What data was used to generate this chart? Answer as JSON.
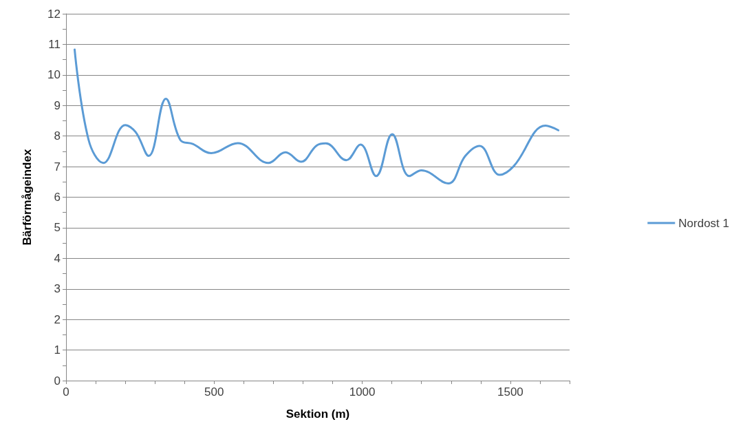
{
  "chart_data": {
    "type": "line",
    "xlabel": "Sektion (m)",
    "ylabel": "Bärförmågeindex",
    "series": [
      {
        "name": "Nordost 1",
        "color": "#5b9bd5",
        "x": [
          29,
          76,
          126,
          200,
          235,
          279,
          337,
          386,
          428,
          490,
          580,
          683,
          741,
          793,
          846,
          877,
          946,
          994,
          1047,
          1101,
          1159,
          1200,
          1290,
          1348,
          1396,
          1464,
          1511,
          1619,
          1662
        ],
        "values": [
          10.83,
          7.88,
          7.12,
          8.36,
          8.13,
          7.35,
          9.22,
          7.87,
          7.74,
          7.44,
          7.77,
          7.12,
          7.47,
          7.16,
          7.69,
          7.76,
          7.21,
          7.72,
          6.69,
          8.06,
          6.69,
          6.88,
          6.45,
          7.35,
          7.68,
          6.73,
          7.01,
          8.34,
          8.19
        ]
      }
    ],
    "xlim": [
      0,
      1700
    ],
    "xticks": [
      0,
      {
        "value": 100,
        "label": null
      },
      {
        "value": 200,
        "label": null
      },
      {
        "value": 300,
        "label": null
      },
      {
        "value": 400,
        "label": null
      },
      500,
      {
        "value": 600,
        "label": null
      },
      {
        "value": 700,
        "label": null
      },
      {
        "value": 800,
        "label": null
      },
      {
        "value": 900,
        "label": null
      },
      1000,
      {
        "value": 1100,
        "label": null
      },
      {
        "value": 1200,
        "label": null
      },
      {
        "value": 1300,
        "label": null
      },
      {
        "value": 1400,
        "label": null
      },
      1500,
      {
        "value": 1600,
        "label": null
      },
      {
        "value": 1700,
        "label": null
      }
    ],
    "ylim": [
      0,
      12
    ],
    "yticks": [
      0,
      {
        "value": 0.5,
        "label": null
      },
      1,
      {
        "value": 1.5,
        "label": null
      },
      2,
      {
        "value": 2.5,
        "label": null
      },
      3,
      {
        "value": 3.5,
        "label": null
      },
      4,
      {
        "value": 4.5,
        "label": null
      },
      5,
      {
        "value": 5.5,
        "label": null
      },
      6,
      {
        "value": 6.5,
        "label": null
      },
      7,
      {
        "value": 7.5,
        "label": null
      },
      8,
      {
        "value": 8.5,
        "label": null
      },
      9,
      {
        "value": 9.5,
        "label": null
      },
      10,
      {
        "value": 10.5,
        "label": null
      },
      11,
      {
        "value": 11.5,
        "label": null
      },
      12
    ],
    "grid": "y",
    "legend": "right",
    "marker": "none",
    "line_style": "solid"
  }
}
